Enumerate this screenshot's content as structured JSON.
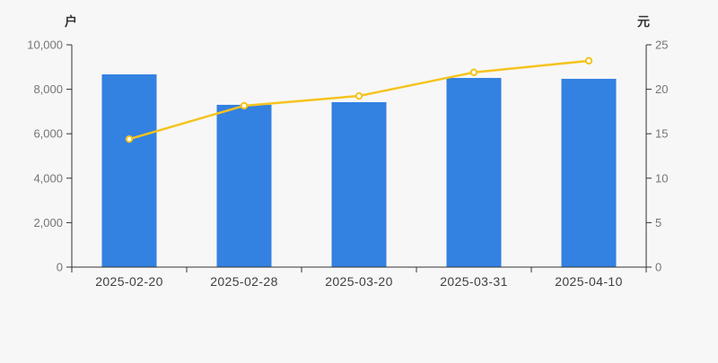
{
  "page": {
    "background_color": "#f7f7f7",
    "axis_line_color": "#333333"
  },
  "chart_data": {
    "type": "bar",
    "subtype": "dual-axis bar + line",
    "categories": [
      "2025-02-20",
      "2025-02-28",
      "2025-03-20",
      "2025-03-31",
      "2025-04-10"
    ],
    "series": [
      {
        "name": "户",
        "type": "bar",
        "axis": "left",
        "color": "#3381e1",
        "values": [
          8670,
          7300,
          7420,
          8510,
          8470
        ]
      },
      {
        "name": "元",
        "type": "line",
        "axis": "right",
        "color": "#f5c31e",
        "marker": "open-circle",
        "marker_fill": "#ffffff",
        "values": [
          14.4,
          18.15,
          19.25,
          21.9,
          23.2
        ]
      }
    ],
    "left_axis": {
      "title": "户",
      "min": 0,
      "max": 10000,
      "step": 2000,
      "tick_labels": [
        "0",
        "2,000",
        "4,000",
        "6,000",
        "8,000",
        "10,000"
      ]
    },
    "right_axis": {
      "title": "元",
      "min": 0,
      "max": 25,
      "step": 5,
      "tick_labels": [
        "0",
        "5",
        "10",
        "15",
        "20",
        "25"
      ]
    },
    "x_axis": {
      "tick_position": "between-categories"
    },
    "grid": false,
    "legend": false,
    "title": ""
  }
}
